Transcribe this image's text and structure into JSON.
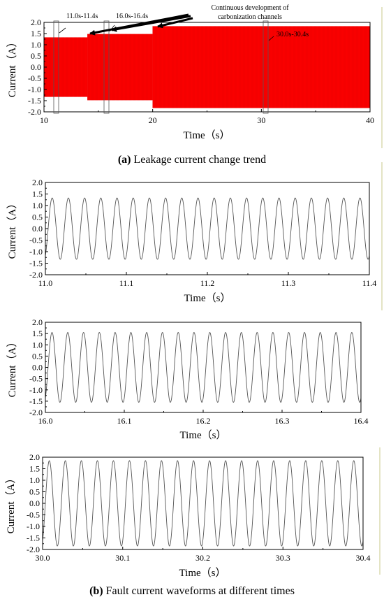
{
  "chart_data": [
    {
      "type": "line",
      "xlabel": "Time（s）",
      "ylabel": "Current（A）",
      "xlim": [
        10,
        40
      ],
      "ylim": [
        -2.0,
        2.0
      ],
      "x_ticks": [
        "10",
        "20",
        "30",
        "40"
      ],
      "y_ticks": [
        "2.0",
        "1.5",
        "1.0",
        "0.5",
        "0.0",
        "-0.5",
        "-1.0",
        "-1.5",
        "-2.0"
      ],
      "color": "#ff0000",
      "envelope": [
        {
          "x_start": 10.0,
          "x_end": 14.0,
          "amplitude": 1.33
        },
        {
          "x_start": 14.0,
          "x_end": 20.0,
          "amplitude": 1.48
        },
        {
          "x_start": 20.0,
          "x_end": 40.0,
          "amplitude": 1.83
        }
      ],
      "windows": [
        {
          "label": "11.0s-11.4s",
          "x_start": 11.0,
          "x_end": 11.4
        },
        {
          "label": "16.0s-16.4s",
          "x_start": 16.0,
          "x_end": 16.4
        },
        {
          "label": "30.0s-30.4s",
          "x_start": 30.0,
          "x_end": 30.4
        }
      ],
      "annotation": [
        "Continuous development of",
        "carbonization channels"
      ],
      "caption_bold": "(a)",
      "caption_text": " Leakage current change trend"
    },
    {
      "type": "line",
      "xlabel": "Time（s）",
      "ylabel": "Current（A）",
      "xlim": [
        11.0,
        11.4
      ],
      "ylim": [
        -2.0,
        2.0
      ],
      "x_ticks": [
        "11.0",
        "11.1",
        "11.2",
        "11.3",
        "11.4"
      ],
      "y_ticks": [
        "2.0",
        "1.5",
        "1.0",
        "0.5",
        "0.0",
        "-0.5",
        "-1.0",
        "-1.5",
        "-2.0"
      ],
      "frequency_hz": 50,
      "amplitude": 1.33,
      "color": "#555555"
    },
    {
      "type": "line",
      "xlabel": "Time（s）",
      "ylabel": "Current（A）",
      "xlim": [
        16.0,
        16.4
      ],
      "ylim": [
        -2.0,
        2.0
      ],
      "x_ticks": [
        "16.0",
        "16.1",
        "16.2",
        "16.3",
        "16.4"
      ],
      "y_ticks": [
        "2.0",
        "1.5",
        "1.0",
        "0.5",
        "0.0",
        "-0.5",
        "-1.0",
        "-1.5",
        "-2.0"
      ],
      "frequency_hz": 50,
      "amplitude": 1.55,
      "color": "#555555"
    },
    {
      "type": "line",
      "xlabel": "Time（s）",
      "ylabel": "Current（A）",
      "xlim": [
        30.0,
        30.4
      ],
      "ylim": [
        -2.0,
        2.0
      ],
      "x_ticks": [
        "30.0",
        "30.1",
        "30.2",
        "30.3",
        "30.4"
      ],
      "y_ticks": [
        "2.0",
        "1.5",
        "1.0",
        "0.5",
        "0.0",
        "-0.5",
        "-1.0",
        "-1.5",
        "-2.0"
      ],
      "frequency_hz": 50,
      "amplitude": 1.85,
      "color": "#555555",
      "caption_bold": "(b)",
      "caption_text": " Fault current waveforms at different times"
    }
  ]
}
